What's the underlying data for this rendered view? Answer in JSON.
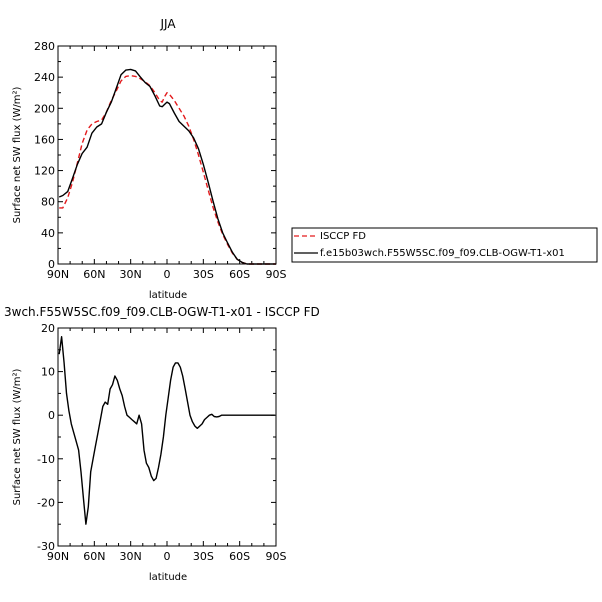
{
  "chart_data": [
    {
      "type": "line",
      "title": "JJA",
      "xlabel": "latitude",
      "ylabel": "Surface net SW flux (W/m²)",
      "xlim": [
        90,
        -90
      ],
      "ylim": [
        0,
        280
      ],
      "x_ticks": [
        "90N",
        "60N",
        "30N",
        "0",
        "30S",
        "60S",
        "90S"
      ],
      "y_ticks": [
        "0",
        "40",
        "80",
        "120",
        "160",
        "200",
        "240",
        "280"
      ],
      "legend_position": "right",
      "series": [
        {
          "name": "ISCCP FD",
          "color": "#e31a1c",
          "style": "dashed",
          "x": [
            89,
            86,
            82,
            78,
            74,
            70,
            66,
            62,
            58,
            54,
            50,
            46,
            42,
            38,
            34,
            30,
            26,
            22,
            18,
            14,
            10,
            6,
            4,
            2,
            0,
            -2,
            -6,
            -10,
            -14,
            -18,
            -22,
            -26,
            -30,
            -34,
            -38,
            -42,
            -46,
            -50,
            -54,
            -58,
            -62,
            -66,
            -70,
            -74,
            -78,
            -82,
            -86,
            -90
          ],
          "y": [
            72,
            72,
            85,
            105,
            130,
            155,
            172,
            180,
            183,
            185,
            195,
            210,
            222,
            235,
            241,
            242,
            241,
            238,
            234,
            229,
            220,
            210,
            208,
            215,
            220,
            218,
            210,
            200,
            190,
            177,
            160,
            140,
            118,
            95,
            73,
            54,
            38,
            25,
            14,
            6,
            2,
            0,
            0,
            0,
            0,
            0,
            0,
            0
          ]
        },
        {
          "name": "f.e15b03wch.F55W5SC.f09_f09.CLB-OGW-T1-x01",
          "color": "#000000",
          "style": "solid",
          "x": [
            89,
            86,
            82,
            78,
            74,
            70,
            66,
            62,
            58,
            54,
            50,
            46,
            42,
            38,
            34,
            30,
            26,
            22,
            18,
            14,
            10,
            6,
            4,
            2,
            0,
            -2,
            -6,
            -10,
            -14,
            -18,
            -22,
            -26,
            -30,
            -34,
            -38,
            -42,
            -46,
            -50,
            -54,
            -58,
            -62,
            -66,
            -70,
            -74,
            -78,
            -82,
            -86,
            -90
          ],
          "y": [
            86,
            88,
            93,
            110,
            128,
            142,
            150,
            168,
            176,
            180,
            195,
            208,
            225,
            243,
            249,
            250,
            248,
            240,
            233,
            228,
            216,
            203,
            202,
            205,
            208,
            206,
            194,
            183,
            177,
            171,
            162,
            148,
            128,
            105,
            81,
            58,
            40,
            27,
            15,
            6,
            2,
            0,
            0,
            0,
            0,
            0,
            0,
            0
          ]
        }
      ]
    },
    {
      "type": "line",
      "title": "3wch.F55W5SC.f09_f09.CLB-OGW-T1-x01 - ISCCP FD",
      "xlabel": "latitude",
      "ylabel": "Surface net SW flux (W/m²)",
      "xlim": [
        90,
        -90
      ],
      "ylim": [
        -30,
        20
      ],
      "x_ticks": [
        "90N",
        "60N",
        "30N",
        "0",
        "30S",
        "60S",
        "90S"
      ],
      "y_ticks": [
        "-30",
        "-20",
        "-10",
        "0",
        "10",
        "20"
      ],
      "series": [
        {
          "name": "",
          "color": "#000000",
          "style": "solid",
          "x": [
            89,
            87,
            85,
            83,
            81,
            79,
            77,
            75,
            73,
            71,
            69,
            67,
            65,
            63,
            61,
            59,
            57,
            55,
            53,
            51,
            49,
            47,
            45,
            43,
            41,
            39,
            37,
            35,
            33,
            31,
            29,
            27,
            25,
            23,
            21,
            19,
            17,
            15,
            13,
            11,
            9,
            7,
            5,
            3,
            1,
            -1,
            -3,
            -5,
            -7,
            -9,
            -11,
            -13,
            -15,
            -17,
            -19,
            -21,
            -23,
            -25,
            -27,
            -29,
            -31,
            -33,
            -35,
            -37,
            -39,
            -41,
            -43,
            -45,
            -47,
            -49,
            -51,
            -53,
            -55,
            -57,
            -59,
            -61,
            -63,
            -65,
            -67,
            -69,
            -71,
            -73,
            -75,
            -77,
            -79,
            -81,
            -83,
            -85,
            -87,
            -89
          ],
          "y": [
            14,
            18,
            12,
            5,
            1,
            -2,
            -4,
            -6,
            -8,
            -13,
            -19,
            -25,
            -21,
            -13,
            -10,
            -7,
            -4,
            -1,
            2,
            3,
            2.5,
            6,
            7,
            9,
            8,
            6,
            4.5,
            2,
            0,
            -0.5,
            -1,
            -1.5,
            -2,
            0,
            -2,
            -8,
            -11,
            -12,
            -14,
            -15,
            -14.5,
            -12,
            -9,
            -5,
            0,
            4,
            8,
            11,
            12,
            12,
            11,
            9,
            6,
            3,
            0,
            -1.5,
            -2.5,
            -3,
            -2.5,
            -2,
            -1,
            -0.5,
            0,
            0.2,
            -0.3,
            -0.4,
            -0.3,
            0,
            0,
            0,
            0,
            0,
            0,
            0,
            0,
            0,
            0,
            0,
            0,
            0,
            0,
            0,
            0,
            0,
            0,
            0,
            0,
            0,
            0,
            0
          ]
        }
      ]
    }
  ]
}
